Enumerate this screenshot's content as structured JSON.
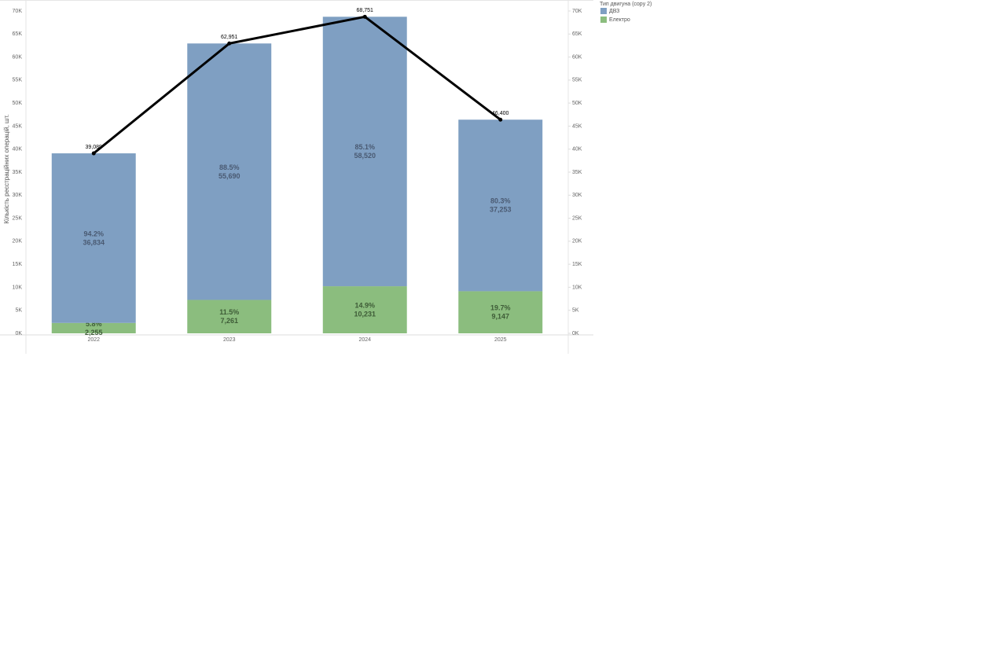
{
  "chart_data": {
    "type": "stacked-bar-line",
    "y_axis_label": "Кількість реєстраційних операцій, шт.",
    "legend_title": "Тип двигуна (copy 2)",
    "categories": [
      "2022",
      "2023",
      "2024",
      "2025"
    ],
    "series": [
      {
        "name": "Електро",
        "color": "#8bbd7e",
        "label_color": "#3e5c37",
        "values": [
          2255,
          7261,
          10231,
          9147
        ],
        "value_labels": [
          "2,255",
          "7,261",
          "10,231",
          "9,147"
        ],
        "percent_labels": [
          "5.8%",
          "11.5%",
          "14.9%",
          "19.7%"
        ]
      },
      {
        "name": "ДВЗ",
        "color": "#7f9fc2",
        "label_color": "#4a5a72",
        "values": [
          36834,
          55690,
          58520,
          37253
        ],
        "value_labels": [
          "36,834",
          "55,690",
          "58,520",
          "37,253"
        ],
        "percent_labels": [
          "94.2%",
          "88.5%",
          "85.1%",
          "80.3%"
        ]
      }
    ],
    "line": {
      "color": "#000000",
      "values": [
        39089,
        62951,
        68751,
        46400
      ],
      "value_labels": [
        "39,089",
        "62,951",
        "68,751",
        "46,400"
      ]
    },
    "ylim": [
      0,
      70000
    ],
    "yticks": [
      {
        "value": 0,
        "label": "0K"
      },
      {
        "value": 5000,
        "label": "5K"
      },
      {
        "value": 10000,
        "label": "10K"
      },
      {
        "value": 15000,
        "label": "15K"
      },
      {
        "value": 20000,
        "label": "20K"
      },
      {
        "value": 25000,
        "label": "25K"
      },
      {
        "value": 30000,
        "label": "30K"
      },
      {
        "value": 35000,
        "label": "35K"
      },
      {
        "value": 40000,
        "label": "40K"
      },
      {
        "value": 45000,
        "label": "45K"
      },
      {
        "value": 50000,
        "label": "50K"
      },
      {
        "value": 55000,
        "label": "55K"
      },
      {
        "value": 60000,
        "label": "60K"
      },
      {
        "value": 65000,
        "label": "65K"
      },
      {
        "value": 70000,
        "label": "70K"
      }
    ],
    "legend_order": [
      1,
      0
    ]
  }
}
